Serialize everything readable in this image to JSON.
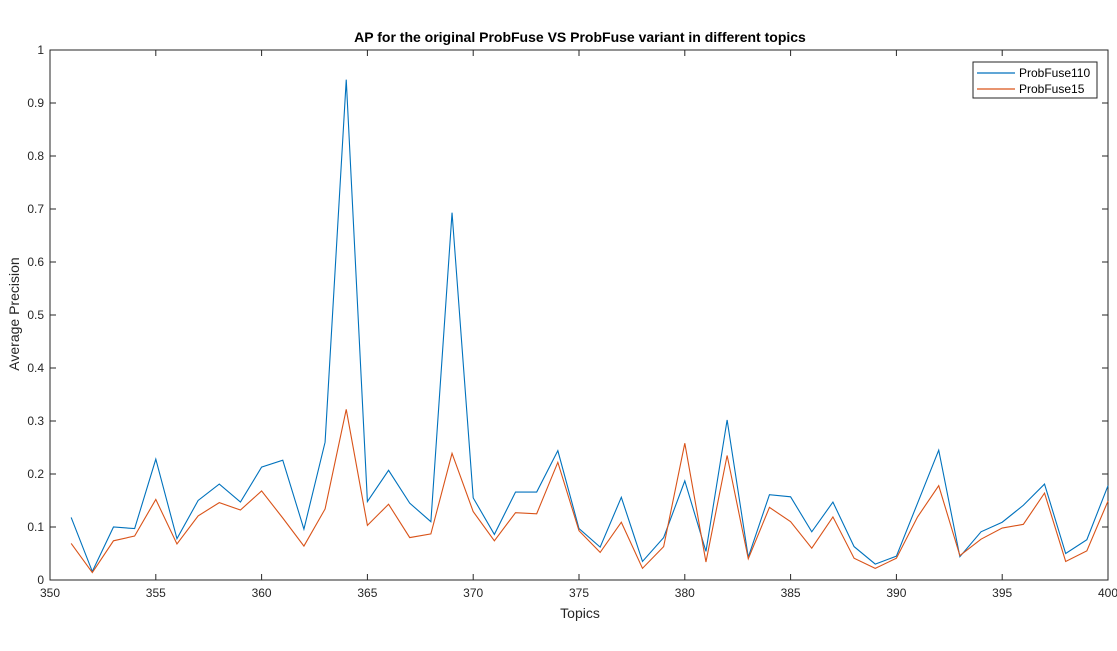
{
  "chart_data": {
    "type": "line",
    "title": "AP for the original ProbFuse VS ProbFuse variant in different topics",
    "xlabel": "Topics",
    "ylabel": "Average Precision",
    "xlim": [
      350,
      400
    ],
    "ylim": [
      0,
      1
    ],
    "xticks": [
      350,
      355,
      360,
      365,
      370,
      375,
      380,
      385,
      390,
      395,
      400
    ],
    "yticks": [
      0,
      0.1,
      0.2,
      0.3,
      0.4,
      0.5,
      0.6,
      0.7,
      0.8,
      0.9,
      1
    ],
    "ytick_labels": [
      "0",
      "0.1",
      "0.2",
      "0.3",
      "0.4",
      "0.5",
      "0.6",
      "0.7",
      "0.8",
      "0.9",
      "1"
    ],
    "grid": false,
    "legend_position": "top-right",
    "x": [
      351,
      352,
      353,
      354,
      355,
      356,
      357,
      358,
      359,
      360,
      361,
      362,
      363,
      364,
      365,
      366,
      367,
      368,
      369,
      370,
      371,
      372,
      373,
      374,
      375,
      376,
      377,
      378,
      379,
      380,
      381,
      382,
      383,
      384,
      385,
      386,
      387,
      388,
      389,
      390,
      391,
      392,
      393,
      394,
      395,
      396,
      397,
      398,
      399,
      400
    ],
    "series": [
      {
        "name": "ProbFuse110",
        "color": "#0072BD",
        "values": [
          0.118,
          0.016,
          0.1,
          0.097,
          0.228,
          0.078,
          0.15,
          0.181,
          0.147,
          0.213,
          0.226,
          0.096,
          0.26,
          0.944,
          0.148,
          0.207,
          0.145,
          0.11,
          0.693,
          0.155,
          0.086,
          0.166,
          0.166,
          0.244,
          0.097,
          0.062,
          0.156,
          0.035,
          0.08,
          0.187,
          0.054,
          0.302,
          0.043,
          0.161,
          0.157,
          0.091,
          0.147,
          0.063,
          0.03,
          0.045,
          0.145,
          0.245,
          0.044,
          0.091,
          0.109,
          0.141,
          0.181,
          0.05,
          0.076,
          0.178
        ]
      },
      {
        "name": "ProbFuse15",
        "color": "#D95319",
        "values": [
          0.069,
          0.014,
          0.074,
          0.083,
          0.152,
          0.068,
          0.121,
          0.146,
          0.132,
          0.168,
          0.117,
          0.064,
          0.134,
          0.322,
          0.103,
          0.143,
          0.08,
          0.087,
          0.239,
          0.129,
          0.074,
          0.127,
          0.125,
          0.222,
          0.093,
          0.052,
          0.109,
          0.022,
          0.063,
          0.258,
          0.034,
          0.235,
          0.04,
          0.137,
          0.11,
          0.06,
          0.119,
          0.041,
          0.022,
          0.041,
          0.119,
          0.178,
          0.046,
          0.077,
          0.098,
          0.105,
          0.164,
          0.035,
          0.055,
          0.149
        ]
      }
    ]
  }
}
